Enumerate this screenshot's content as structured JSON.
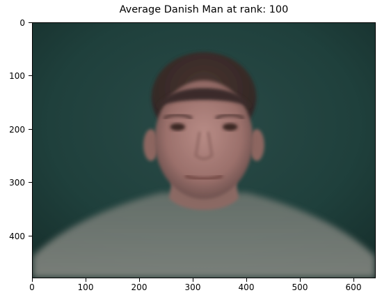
{
  "figure": {
    "title": "Average Danish Man at rank: 100",
    "image_description_icon": "averaged-face-photo",
    "x_ticks": [
      "0",
      "100",
      "200",
      "300",
      "400",
      "500",
      "600"
    ],
    "y_ticks": [
      "0",
      "100",
      "200",
      "300",
      "400"
    ],
    "x_range": [
      0,
      640
    ],
    "y_range": [
      0,
      480
    ]
  }
}
